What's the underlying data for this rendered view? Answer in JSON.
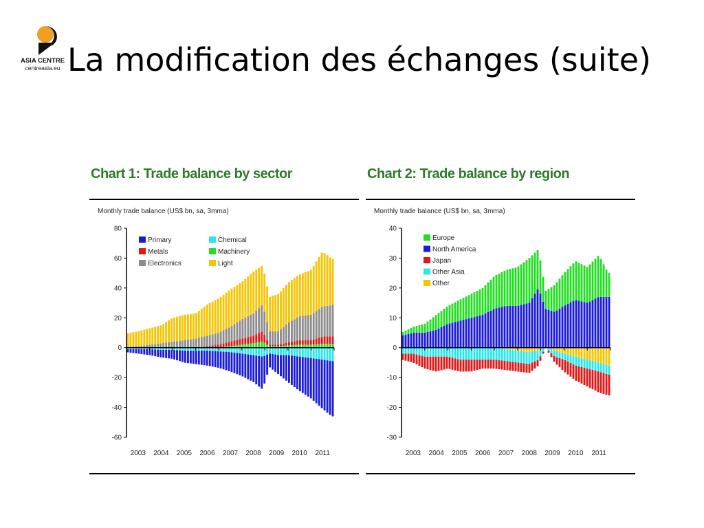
{
  "slide": {
    "title": "La modification des échanges (suite)",
    "logo_name": "ASIA CENTRE",
    "logo_url": "centreasia.eu"
  },
  "colors": {
    "title_green": "#2f7a2a",
    "primary": "#1a1adc",
    "metals": "#e01818",
    "electronics": "#8c8c8c",
    "chemical": "#28e6ea",
    "machinery": "#22dd22",
    "light": "#f6c400",
    "europe": "#22dd22",
    "north_america": "#1a1adc",
    "japan": "#e01818",
    "other_asia": "#28e6ea",
    "other": "#f6c400"
  },
  "chart_data": [
    {
      "type": "bar",
      "title": "Chart 1: Trade balance by sector",
      "subtitle": "Monthly trade balance (US$ bn, sa, 3mma)",
      "ylim": [
        -60,
        80
      ],
      "yticks": [
        80,
        60,
        40,
        20,
        0,
        -20,
        -40,
        -60
      ],
      "xlim": [
        2003.0,
        2012.0
      ],
      "x_tick_labels": [
        "2003",
        "2004",
        "2005",
        "2006",
        "2007",
        "2008",
        "2009",
        "2010",
        "2011"
      ],
      "legend": "top-left, two columns",
      "legend_labels": [
        "Primary",
        "Chemical",
        "Metals",
        "Machinery",
        "Electronics",
        "Light"
      ],
      "grid": false,
      "x": [
        2003.0,
        2003.5,
        2004.0,
        2004.5,
        2005.0,
        2005.5,
        2006.0,
        2006.5,
        2007.0,
        2007.5,
        2008.0,
        2008.5,
        2008.9,
        2009.2,
        2009.6,
        2010.0,
        2010.5,
        2011.0,
        2011.5,
        2011.9
      ],
      "series": [
        {
          "name": "Machinery",
          "stack": "positive",
          "values": [
            0,
            0,
            0,
            0,
            0,
            0,
            0,
            0,
            0,
            1.0,
            2.0,
            3.0,
            4.0,
            1.0,
            1.0,
            1.5,
            2.0,
            2.0,
            2.5,
            2.5
          ]
        },
        {
          "name": "Metals",
          "stack": "positive",
          "values": [
            0,
            0,
            0,
            0,
            0,
            0,
            0,
            1.0,
            2.0,
            3.0,
            4.0,
            5.0,
            7.0,
            1.0,
            1.0,
            2.0,
            3.0,
            3.0,
            5.0,
            5.0
          ]
        },
        {
          "name": "Electronics",
          "stack": "positive",
          "values": [
            0.5,
            1,
            2,
            3,
            4,
            5,
            6,
            7,
            8,
            10,
            13,
            15,
            18,
            9,
            9,
            13,
            16,
            17,
            20,
            21
          ]
        },
        {
          "name": "Light",
          "stack": "positive",
          "values": [
            9,
            10,
            11,
            12,
            16,
            17,
            17,
            21,
            23,
            25,
            25,
            28,
            26,
            23,
            25,
            27,
            28,
            30,
            37,
            31
          ]
        },
        {
          "name": "Chemical",
          "stack": "negative",
          "values": [
            -1,
            -1,
            -1,
            -1.5,
            -1.5,
            -2,
            -2,
            -2,
            -2.5,
            -3,
            -4,
            -5,
            -6,
            -4,
            -5,
            -5,
            -6,
            -7,
            -8,
            -9
          ]
        },
        {
          "name": "Primary",
          "stack": "negative",
          "values": [
            -2,
            -3,
            -4,
            -5,
            -6,
            -8,
            -9,
            -10,
            -11,
            -13,
            -15,
            -18,
            -22,
            -9,
            -13,
            -18,
            -23,
            -27,
            -33,
            -37
          ]
        }
      ]
    },
    {
      "type": "bar",
      "title": "Chart 2: Trade balance by region",
      "subtitle": "Monthly trade balance (US$ bn, sa, 3mma)",
      "ylim": [
        -30,
        40
      ],
      "yticks": [
        40,
        30,
        20,
        10,
        0,
        -10,
        -20,
        -30
      ],
      "xlim": [
        2003.0,
        2012.0
      ],
      "x_tick_labels": [
        "2003",
        "2004",
        "2005",
        "2006",
        "2007",
        "2008",
        "2009",
        "2010",
        "2011"
      ],
      "legend": "top-left, one column",
      "legend_labels": [
        "Europe",
        "North America",
        "Japan",
        "Other Asia",
        "Other"
      ],
      "grid": false,
      "x": [
        2003.0,
        2003.5,
        2004.0,
        2004.5,
        2005.0,
        2005.5,
        2006.0,
        2006.5,
        2007.0,
        2007.5,
        2008.0,
        2008.5,
        2008.9,
        2009.2,
        2009.6,
        2010.0,
        2010.5,
        2011.0,
        2011.5,
        2011.9
      ],
      "series": [
        {
          "name": "North America",
          "stack": "positive",
          "values": [
            4,
            5,
            5,
            6,
            8,
            9,
            10,
            11,
            13,
            14,
            14,
            15,
            20,
            13,
            12,
            14,
            16,
            15,
            17,
            17
          ]
        },
        {
          "name": "Europe",
          "stack": "positive",
          "values": [
            1,
            2,
            3,
            5,
            6,
            7,
            8,
            9,
            11,
            12,
            13,
            15,
            13,
            6,
            9,
            11,
            13,
            12,
            14,
            8
          ]
        },
        {
          "name": "Other",
          "stack": "negative",
          "values": [
            0,
            0,
            0,
            0,
            0,
            0,
            0,
            0,
            0,
            -0.5,
            -1,
            -1.5,
            -1,
            0,
            -1,
            -2,
            -3,
            -4,
            -5,
            -6
          ]
        },
        {
          "name": "Other Asia",
          "stack": "negative",
          "values": [
            -2,
            -2,
            -3,
            -3,
            -3,
            -4,
            -4,
            -4,
            -4,
            -4,
            -4,
            -4,
            -3,
            0,
            -2,
            -2,
            -3,
            -3,
            -3,
            -3
          ]
        },
        {
          "name": "Japan",
          "stack": "negative",
          "values": [
            -2,
            -3,
            -4,
            -5,
            -4,
            -4,
            -4,
            -3,
            -3,
            -3,
            -3,
            -3,
            -2,
            0,
            -2,
            -4,
            -5,
            -6,
            -7,
            -7
          ]
        }
      ]
    }
  ]
}
